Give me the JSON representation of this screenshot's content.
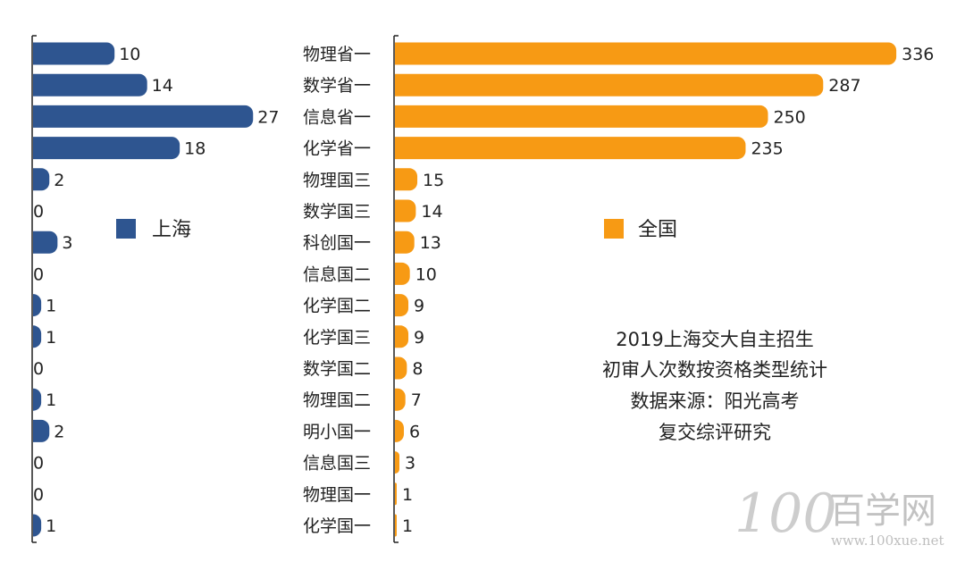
{
  "chart_data": [
    {
      "type": "bar",
      "orientation": "horizontal",
      "legend": "上海",
      "color": "#2e5590",
      "categories": [
        "物理省一",
        "数学省一",
        "信息省一",
        "化学省一",
        "物理国三",
        "数学国三",
        "科创国一",
        "信息国二",
        "化学国二",
        "化学国三",
        "数学国二",
        "物理国二",
        "明小国一",
        "信息国三",
        "物理国一",
        "化学国一"
      ],
      "values": [
        10,
        14,
        27,
        18,
        2,
        0,
        3,
        0,
        1,
        1,
        0,
        1,
        2,
        0,
        0,
        1
      ],
      "xlim": [
        0,
        30
      ]
    },
    {
      "type": "bar",
      "orientation": "horizontal",
      "legend": "全国",
      "color": "#f79a14",
      "categories": [
        "物理省一",
        "数学省一",
        "信息省一",
        "化学省一",
        "物理国三",
        "数学国三",
        "科创国一",
        "信息国二",
        "化学国二",
        "化学国三",
        "数学国二",
        "物理国二",
        "明小国一",
        "信息国三",
        "物理国一",
        "化学国一"
      ],
      "values": [
        336,
        287,
        250,
        235,
        15,
        14,
        13,
        10,
        9,
        9,
        8,
        7,
        6,
        3,
        1,
        1
      ],
      "xlim": [
        0,
        355
      ]
    }
  ],
  "annotation": {
    "lines": [
      "2019上海交大自主招生",
      "初审人次数按资格类型统计",
      "数据来源：阳光高考",
      "复交综评研究"
    ]
  },
  "watermark": {
    "logo": "100",
    "name": "百学网",
    "url": "www.100xue.net"
  }
}
